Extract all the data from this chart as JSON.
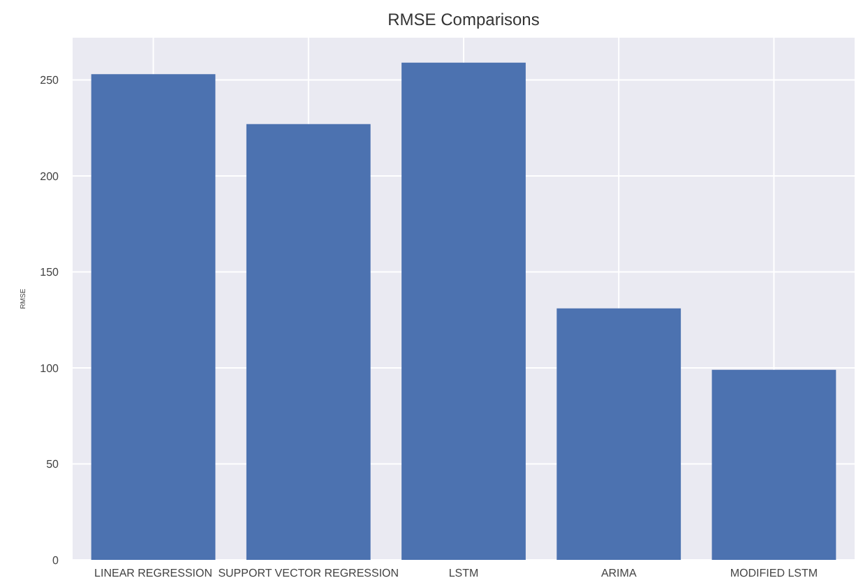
{
  "chart_data": {
    "type": "bar",
    "title": "RMSE Comparisons",
    "ylabel": "RMSE",
    "categories": [
      "LINEAR REGRESSION",
      "SUPPORT VECTOR REGRESSION",
      "LSTM",
      "ARIMA",
      "MODIFIED LSTM"
    ],
    "values": [
      253,
      227,
      259,
      131,
      99
    ],
    "color": "#4c72b0",
    "ylim": [
      0,
      272
    ],
    "yticks": [
      0,
      50,
      100,
      150,
      200,
      250
    ],
    "grid": true
  }
}
